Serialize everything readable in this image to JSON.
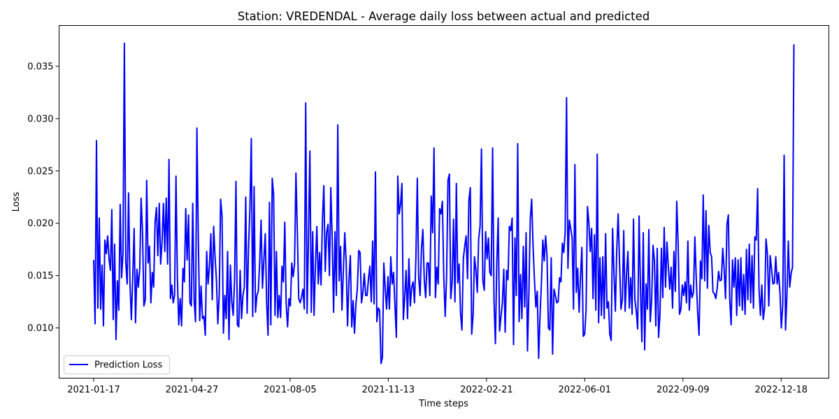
{
  "chart_data": {
    "type": "line",
    "title": "Station: VREDENDAL - Average daily loss between actual and predicted",
    "xlabel": "Time steps",
    "ylabel": "Loss",
    "x_start": "2021-01-17",
    "x_end": "2022-12-31",
    "x_ticks": [
      "2021-01-17",
      "2021-04-27",
      "2021-08-05",
      "2021-11-13",
      "2022-02-21",
      "2022-06-01",
      "2022-09-09",
      "2022-12-18"
    ],
    "ylim": [
      0.0052,
      0.0389
    ],
    "y_ticks": [
      "0.010",
      "0.015",
      "0.020",
      "0.025",
      "0.030",
      "0.035"
    ],
    "grid": false,
    "legend_position": "lower-left",
    "series": [
      {
        "name": "Prediction Loss",
        "color": "#0000ff",
        "values": [
          0.0165,
          0.0104,
          0.0279,
          0.0119,
          0.0205,
          0.0118,
          0.016,
          0.0102,
          0.0184,
          0.0171,
          0.0188,
          0.0166,
          0.0155,
          0.0213,
          0.0108,
          0.018,
          0.0089,
          0.0145,
          0.0117,
          0.0218,
          0.0148,
          0.0171,
          0.0372,
          0.0163,
          0.0142,
          0.0229,
          0.0143,
          0.0108,
          0.0148,
          0.0195,
          0.0105,
          0.0156,
          0.0139,
          0.0156,
          0.0224,
          0.0192,
          0.0121,
          0.0127,
          0.0241,
          0.0162,
          0.0178,
          0.0124,
          0.0153,
          0.0139,
          0.0201,
          0.0215,
          0.0169,
          0.0219,
          0.0161,
          0.0182,
          0.0219,
          0.0173,
          0.0224,
          0.0161,
          0.0261,
          0.0128,
          0.0141,
          0.0124,
          0.0131,
          0.0245,
          0.0148,
          0.0103,
          0.0128,
          0.0102,
          0.0157,
          0.0144,
          0.0214,
          0.0165,
          0.0208,
          0.0124,
          0.0121,
          0.0219,
          0.0127,
          0.0106,
          0.0291,
          0.0186,
          0.0107,
          0.014,
          0.0109,
          0.0111,
          0.0093,
          0.0173,
          0.0142,
          0.0159,
          0.019,
          0.0127,
          0.0197,
          0.0168,
          0.0146,
          0.0104,
          0.0131,
          0.0223,
          0.0207,
          0.0095,
          0.0131,
          0.0109,
          0.0173,
          0.0089,
          0.016,
          0.0125,
          0.0112,
          0.0145,
          0.024,
          0.0103,
          0.0101,
          0.0155,
          0.0109,
          0.0131,
          0.0139,
          0.0225,
          0.0114,
          0.0176,
          0.0214,
          0.0281,
          0.0111,
          0.0235,
          0.0115,
          0.0131,
          0.0135,
          0.0162,
          0.0203,
          0.0138,
          0.0165,
          0.019,
          0.0124,
          0.0093,
          0.022,
          0.0103,
          0.0243,
          0.0227,
          0.0112,
          0.0173,
          0.011,
          0.0131,
          0.011,
          0.0159,
          0.0144,
          0.0201,
          0.0123,
          0.0101,
          0.0128,
          0.0121,
          0.0162,
          0.0149,
          0.0161,
          0.0248,
          0.0192,
          0.0128,
          0.0124,
          0.0129,
          0.0137,
          0.0118,
          0.0315,
          0.0114,
          0.0188,
          0.0269,
          0.0115,
          0.0192,
          0.0112,
          0.0161,
          0.0197,
          0.0142,
          0.0172,
          0.0141,
          0.0203,
          0.0236,
          0.0154,
          0.0191,
          0.0199,
          0.015,
          0.0234,
          0.0185,
          0.0115,
          0.0192,
          0.0131,
          0.0294,
          0.0145,
          0.0178,
          0.0117,
          0.0155,
          0.0191,
          0.0164,
          0.0102,
          0.0145,
          0.0169,
          0.0101,
          0.0126,
          0.0095,
          0.0123,
          0.0137,
          0.0174,
          0.0172,
          0.0124,
          0.0134,
          0.0152,
          0.0131,
          0.0131,
          0.0147,
          0.0159,
          0.0125,
          0.0183,
          0.0123,
          0.0249,
          0.0106,
          0.0119,
          0.0117,
          0.0066,
          0.0072,
          0.0162,
          0.0138,
          0.0118,
          0.0149,
          0.0118,
          0.0168,
          0.0142,
          0.0153,
          0.0121,
          0.0091,
          0.0245,
          0.0209,
          0.0218,
          0.0238,
          0.0108,
          0.0129,
          0.0155,
          0.0109,
          0.0166,
          0.0121,
          0.0139,
          0.0144,
          0.0124,
          0.0167,
          0.0243,
          0.0148,
          0.0131,
          0.0176,
          0.0194,
          0.0146,
          0.0129,
          0.0162,
          0.0162,
          0.0131,
          0.0226,
          0.0191,
          0.0272,
          0.0129,
          0.0158,
          0.0142,
          0.0214,
          0.0209,
          0.0221,
          0.0148,
          0.0111,
          0.0149,
          0.0241,
          0.0247,
          0.0128,
          0.0144,
          0.0204,
          0.0125,
          0.0238,
          0.0143,
          0.0161,
          0.0114,
          0.0098,
          0.0166,
          0.0178,
          0.0188,
          0.0147,
          0.0222,
          0.0234,
          0.0094,
          0.0112,
          0.0168,
          0.0155,
          0.0134,
          0.0185,
          0.0197,
          0.0271,
          0.0145,
          0.0136,
          0.0192,
          0.0166,
          0.0186,
          0.0153,
          0.015,
          0.0272,
          0.0126,
          0.0085,
          0.0162,
          0.0205,
          0.0097,
          0.0111,
          0.0124,
          0.0156,
          0.0096,
          0.0155,
          0.0146,
          0.0197,
          0.0193,
          0.0205,
          0.0084,
          0.0186,
          0.0131,
          0.0276,
          0.0106,
          0.0151,
          0.0109,
          0.0178,
          0.012,
          0.0191,
          0.0078,
          0.0133,
          0.0204,
          0.0223,
          0.0178,
          0.0146,
          0.012,
          0.0135,
          0.0071,
          0.0112,
          0.0143,
          0.0184,
          0.0164,
          0.0188,
          0.0169,
          0.01,
          0.0098,
          0.0167,
          0.0075,
          0.0137,
          0.0131,
          0.0124,
          0.0125,
          0.0148,
          0.0144,
          0.0181,
          0.0172,
          0.0191,
          0.032,
          0.0157,
          0.0203,
          0.0195,
          0.0186,
          0.0118,
          0.0256,
          0.0134,
          0.0157,
          0.0115,
          0.0149,
          0.0177,
          0.0092,
          0.0094,
          0.0117,
          0.0216,
          0.0201,
          0.0173,
          0.0195,
          0.0128,
          0.0189,
          0.0117,
          0.0266,
          0.0105,
          0.0167,
          0.0112,
          0.0168,
          0.0109,
          0.019,
          0.0119,
          0.0125,
          0.0094,
          0.0088,
          0.0195,
          0.0153,
          0.0116,
          0.0175,
          0.0209,
          0.0163,
          0.0118,
          0.0127,
          0.0193,
          0.0116,
          0.0151,
          0.0173,
          0.0119,
          0.0148,
          0.0113,
          0.0204,
          0.0127,
          0.0116,
          0.0099,
          0.0207,
          0.0138,
          0.0087,
          0.0191,
          0.0079,
          0.0142,
          0.0118,
          0.0194,
          0.0106,
          0.0126,
          0.0179,
          0.0164,
          0.0102,
          0.0176,
          0.0091,
          0.0114,
          0.0176,
          0.0129,
          0.0196,
          0.0139,
          0.0182,
          0.0158,
          0.0137,
          0.0158,
          0.0119,
          0.0173,
          0.0135,
          0.0221,
          0.0181,
          0.0113,
          0.0118,
          0.0141,
          0.0131,
          0.0144,
          0.0124,
          0.0183,
          0.0117,
          0.0141,
          0.0129,
          0.0134,
          0.0187,
          0.0147,
          0.0115,
          0.0093,
          0.0164,
          0.0147,
          0.0227,
          0.0145,
          0.0212,
          0.0138,
          0.0198,
          0.0172,
          0.0168,
          0.0134,
          0.0133,
          0.0128,
          0.0138,
          0.0154,
          0.0145,
          0.0146,
          0.0176,
          0.0156,
          0.0128,
          0.0199,
          0.0208,
          0.0127,
          0.0103,
          0.0165,
          0.0139,
          0.0167,
          0.0112,
          0.0165,
          0.0121,
          0.0167,
          0.0117,
          0.0151,
          0.0113,
          0.0175,
          0.0127,
          0.018,
          0.0124,
          0.0169,
          0.0119,
          0.0187,
          0.0184,
          0.0233,
          0.0137,
          0.0112,
          0.0141,
          0.0108,
          0.0119,
          0.0185,
          0.0171,
          0.0121,
          0.0169,
          0.0156,
          0.0142,
          0.0143,
          0.0168,
          0.0142,
          0.0153,
          0.0134,
          0.01,
          0.0122,
          0.0265,
          0.0098,
          0.0131,
          0.0183,
          0.0139,
          0.0152,
          0.0158,
          0.0371
        ]
      }
    ]
  }
}
